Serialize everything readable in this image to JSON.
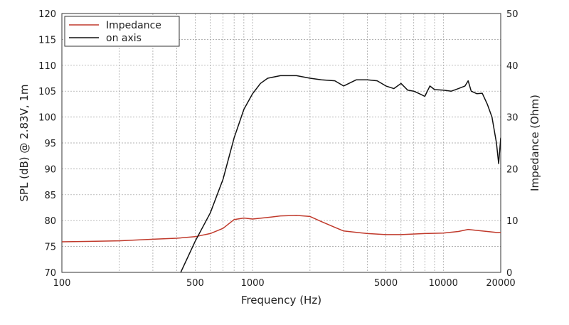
{
  "chart_data": {
    "type": "line",
    "x_scale": "log",
    "xlim": [
      100,
      20000
    ],
    "ylim_left": [
      70,
      120
    ],
    "ylim_right": [
      0,
      50
    ],
    "grid": true,
    "xlabel": "Frequency (Hz)",
    "ylabel_left": "SPL (dB) @ 2.83V, 1m",
    "ylabel_right": "Impedance (Ohm)",
    "x_tick_labels": [
      {
        "value": 100,
        "label": "100"
      },
      {
        "value": 500,
        "label": "500"
      },
      {
        "value": 1000,
        "label": "1000"
      },
      {
        "value": 5000,
        "label": "5000"
      },
      {
        "value": 10000,
        "label": "10000"
      },
      {
        "value": 20000,
        "label": "20000"
      }
    ],
    "y_left_ticks": [
      70,
      75,
      80,
      85,
      90,
      95,
      100,
      105,
      110,
      115,
      120
    ],
    "y_right_ticks": [
      0,
      10,
      20,
      30,
      40,
      50
    ],
    "legend": {
      "placement": "top-left"
    },
    "series": [
      {
        "name": "Impedance",
        "axis": "right",
        "color": "#c0392b",
        "points": [
          [
            100,
            5.9
          ],
          [
            150,
            6.0
          ],
          [
            200,
            6.1
          ],
          [
            300,
            6.4
          ],
          [
            400,
            6.6
          ],
          [
            500,
            6.9
          ],
          [
            600,
            7.5
          ],
          [
            700,
            8.5
          ],
          [
            800,
            10.2
          ],
          [
            900,
            10.5
          ],
          [
            1000,
            10.3
          ],
          [
            1200,
            10.6
          ],
          [
            1400,
            10.9
          ],
          [
            1700,
            11.0
          ],
          [
            2000,
            10.8
          ],
          [
            2300,
            9.8
          ],
          [
            2700,
            8.7
          ],
          [
            3000,
            8.0
          ],
          [
            4000,
            7.5
          ],
          [
            5000,
            7.3
          ],
          [
            6000,
            7.3
          ],
          [
            8000,
            7.5
          ],
          [
            10000,
            7.6
          ],
          [
            12000,
            7.9
          ],
          [
            13500,
            8.3
          ],
          [
            15000,
            8.1
          ],
          [
            17000,
            7.9
          ],
          [
            19000,
            7.7
          ],
          [
            20000,
            7.7
          ]
        ]
      },
      {
        "name": "on axis",
        "axis": "left",
        "color": "#111111",
        "points": [
          [
            420,
            70.0
          ],
          [
            500,
            76.0
          ],
          [
            600,
            81.5
          ],
          [
            700,
            88.0
          ],
          [
            800,
            96.0
          ],
          [
            900,
            101.5
          ],
          [
            1000,
            104.5
          ],
          [
            1100,
            106.5
          ],
          [
            1200,
            107.5
          ],
          [
            1400,
            108.0
          ],
          [
            1700,
            108.0
          ],
          [
            2000,
            107.5
          ],
          [
            2300,
            107.2
          ],
          [
            2700,
            107.0
          ],
          [
            3000,
            106.0
          ],
          [
            3500,
            107.2
          ],
          [
            4000,
            107.2
          ],
          [
            4500,
            107.0
          ],
          [
            5000,
            106.0
          ],
          [
            5500,
            105.5
          ],
          [
            6000,
            106.5
          ],
          [
            6500,
            105.2
          ],
          [
            7000,
            105.0
          ],
          [
            7500,
            104.5
          ],
          [
            8000,
            104.0
          ],
          [
            8500,
            106.0
          ],
          [
            9000,
            105.3
          ],
          [
            10000,
            105.2
          ],
          [
            11000,
            105.0
          ],
          [
            12000,
            105.5
          ],
          [
            13000,
            106.0
          ],
          [
            13500,
            107.0
          ],
          [
            14000,
            105.0
          ],
          [
            15000,
            104.5
          ],
          [
            16000,
            104.6
          ],
          [
            17000,
            102.5
          ],
          [
            18000,
            100.0
          ],
          [
            19000,
            95.0
          ],
          [
            19500,
            91.0
          ],
          [
            20000,
            96.0
          ]
        ]
      }
    ]
  }
}
